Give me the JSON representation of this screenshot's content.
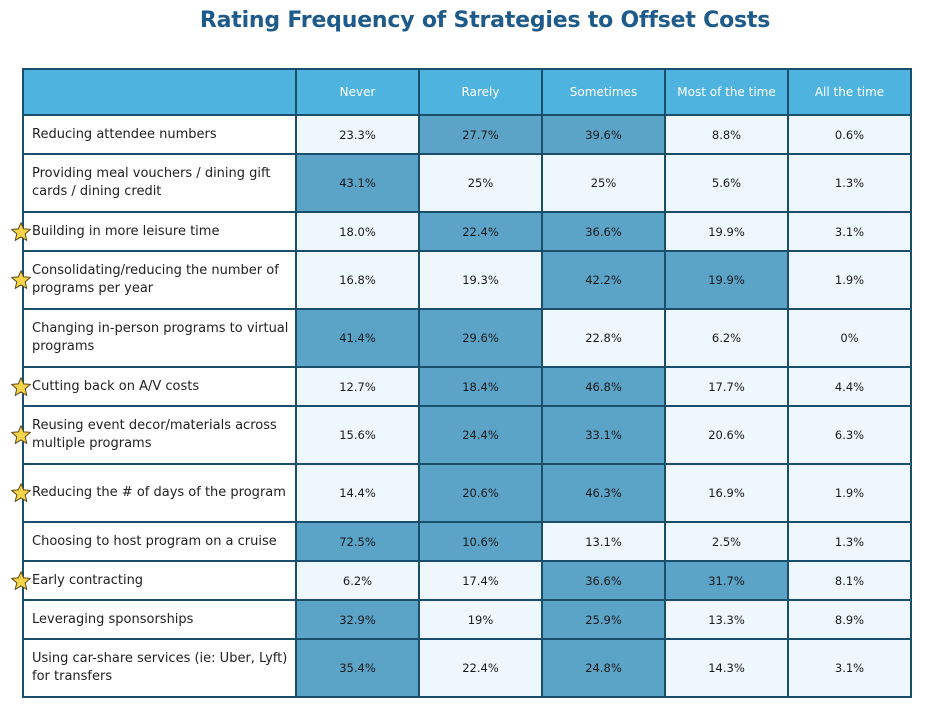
{
  "title": "Rating Frequency of Strategies to Offset Costs",
  "colors": {
    "header_bg": "#4fb3e0",
    "highlight_bg": "#5ba3c7",
    "cell_bg": "#eef7fc",
    "title_color": "#1e5b8a",
    "star_fill": "#f7d34a"
  },
  "chart_data": {
    "type": "table",
    "title": "Rating Frequency of Strategies to Offset Costs",
    "columns": [
      "Never",
      "Rarely",
      "Sometimes",
      "Most of the time",
      "All the time"
    ],
    "rows": [
      {
        "label": "Reducing attendee numbers",
        "values": [
          "23.3%",
          "27.7%",
          "39.6%",
          "8.8%",
          "0.6%"
        ],
        "highlight": [
          false,
          true,
          true,
          false,
          false
        ],
        "starred": false
      },
      {
        "label": "Providing meal vouchers / dining gift cards / dining credit",
        "values": [
          "43.1%",
          "25%",
          "25%",
          "5.6%",
          "1.3%"
        ],
        "highlight": [
          true,
          false,
          false,
          false,
          false
        ],
        "starred": false
      },
      {
        "label": "Building in more leisure time",
        "values": [
          "18.0%",
          "22.4%",
          "36.6%",
          "19.9%",
          "3.1%"
        ],
        "highlight": [
          false,
          true,
          true,
          false,
          false
        ],
        "starred": true
      },
      {
        "label": "Consolidating/reducing the number of programs per year",
        "values": [
          "16.8%",
          "19.3%",
          "42.2%",
          "19.9%",
          "1.9%"
        ],
        "highlight": [
          false,
          false,
          true,
          true,
          false
        ],
        "starred": true
      },
      {
        "label": "Changing in-person programs to virtual programs",
        "values": [
          "41.4%",
          "29.6%",
          "22.8%",
          "6.2%",
          "0%"
        ],
        "highlight": [
          true,
          true,
          false,
          false,
          false
        ],
        "starred": false
      },
      {
        "label": "Cutting back on A/V costs",
        "values": [
          "12.7%",
          "18.4%",
          "46.8%",
          "17.7%",
          "4.4%"
        ],
        "highlight": [
          false,
          true,
          true,
          false,
          false
        ],
        "starred": true
      },
      {
        "label": "Reusing event decor/materials across multiple programs",
        "values": [
          "15.6%",
          "24.4%",
          "33.1%",
          "20.6%",
          "6.3%"
        ],
        "highlight": [
          false,
          true,
          true,
          false,
          false
        ],
        "starred": true
      },
      {
        "label": "Reducing the # of days of the program",
        "values": [
          "14.4%",
          "20.6%",
          "46.3%",
          "16.9%",
          "1.9%"
        ],
        "highlight": [
          false,
          true,
          true,
          false,
          false
        ],
        "starred": true
      },
      {
        "label": "Choosing to host program on a cruise",
        "values": [
          "72.5%",
          "10.6%",
          "13.1%",
          "2.5%",
          "1.3%"
        ],
        "highlight": [
          true,
          true,
          false,
          false,
          false
        ],
        "starred": false
      },
      {
        "label": "Early contracting",
        "values": [
          "6.2%",
          "17.4%",
          "36.6%",
          "31.7%",
          "8.1%"
        ],
        "highlight": [
          false,
          false,
          true,
          true,
          false
        ],
        "starred": true
      },
      {
        "label": "Leveraging sponsorships",
        "values": [
          "32.9%",
          "19%",
          "25.9%",
          "13.3%",
          "8.9%"
        ],
        "highlight": [
          true,
          false,
          true,
          false,
          false
        ],
        "starred": false
      },
      {
        "label": "Using car-share services (ie: Uber, Lyft) for transfers",
        "values": [
          "35.4%",
          "22.4%",
          "24.8%",
          "14.3%",
          "3.1%"
        ],
        "highlight": [
          true,
          false,
          true,
          false,
          false
        ],
        "starred": false
      }
    ]
  }
}
